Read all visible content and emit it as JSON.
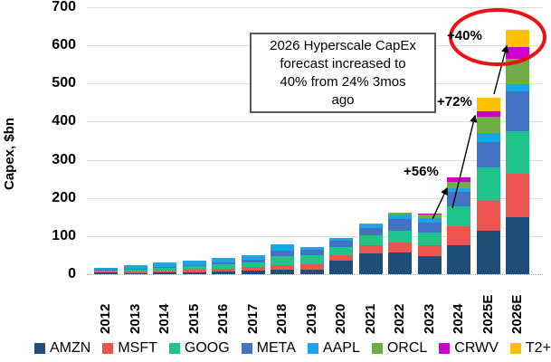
{
  "chart_data": {
    "type": "bar",
    "stacked": true,
    "title": "",
    "xlabel": "",
    "ylabel": "Capex, $bn",
    "ylim": [
      0,
      700
    ],
    "y_ticks": [
      0,
      100,
      200,
      300,
      400,
      500,
      600,
      700
    ],
    "grid": true,
    "legend_position": "bottom",
    "categories": [
      "2012",
      "2013",
      "2014",
      "2015",
      "2016",
      "2017",
      "2018",
      "2019",
      "2020",
      "2021",
      "2022",
      "2023",
      "2024",
      "2025E",
      "2026E"
    ],
    "series": [
      {
        "name": "AMZN",
        "color": "#1f4e79",
        "values": [
          4,
          3,
          5,
          5,
          7,
          10,
          11,
          13,
          35,
          55,
          58,
          48,
          75,
          115,
          150
        ]
      },
      {
        "name": "MSFT",
        "color": "#ec554d",
        "values": [
          2,
          4,
          5,
          6,
          8,
          8,
          12,
          14,
          15,
          21,
          24,
          28,
          50,
          78,
          113
        ]
      },
      {
        "name": "GOOG",
        "color": "#1fc48a",
        "values": [
          3,
          7,
          8,
          10,
          10,
          13,
          25,
          23,
          22,
          25,
          32,
          32,
          52,
          88,
          112
        ]
      },
      {
        "name": "META",
        "color": "#4472c4",
        "values": [
          2,
          1,
          2,
          3,
          5,
          7,
          14,
          15,
          16,
          19,
          31,
          28,
          40,
          66,
          105
        ]
      },
      {
        "name": "AAPL",
        "color": "#1fa3e8",
        "values": [
          6,
          8,
          11,
          11,
          13,
          12,
          16,
          7,
          7,
          11,
          11,
          11,
          9,
          22,
          18
        ]
      },
      {
        "name": "ORCL",
        "color": "#70ad47",
        "values": [
          0,
          0,
          0,
          0,
          0,
          0,
          0,
          0,
          0,
          2,
          5,
          9,
          17,
          43,
          66
        ]
      },
      {
        "name": "CRWV",
        "color": "#cc00cc",
        "values": [
          0,
          0,
          0,
          0,
          0,
          0,
          0,
          0,
          0,
          0,
          0,
          2,
          12,
          16,
          31
        ]
      },
      {
        "name": "T2+",
        "color": "#ffc000",
        "values": [
          0,
          0,
          0,
          0,
          0,
          0,
          0,
          0,
          0,
          0,
          0,
          0,
          0,
          35,
          45
        ]
      }
    ]
  },
  "y_axis": {
    "label": "Capex, $bn"
  },
  "annotation": {
    "lines": [
      "2026 Hyperscale CapEx",
      "forecast increased to",
      "40% from 24% 3mos",
      "ago"
    ]
  },
  "growth_labels": [
    {
      "label": "+56%",
      "year": "2024"
    },
    {
      "label": "+72%",
      "year": "2025E"
    },
    {
      "label": "+40%",
      "year": "2026E"
    }
  ],
  "highlight_circle": {
    "color": "#ee1111"
  }
}
